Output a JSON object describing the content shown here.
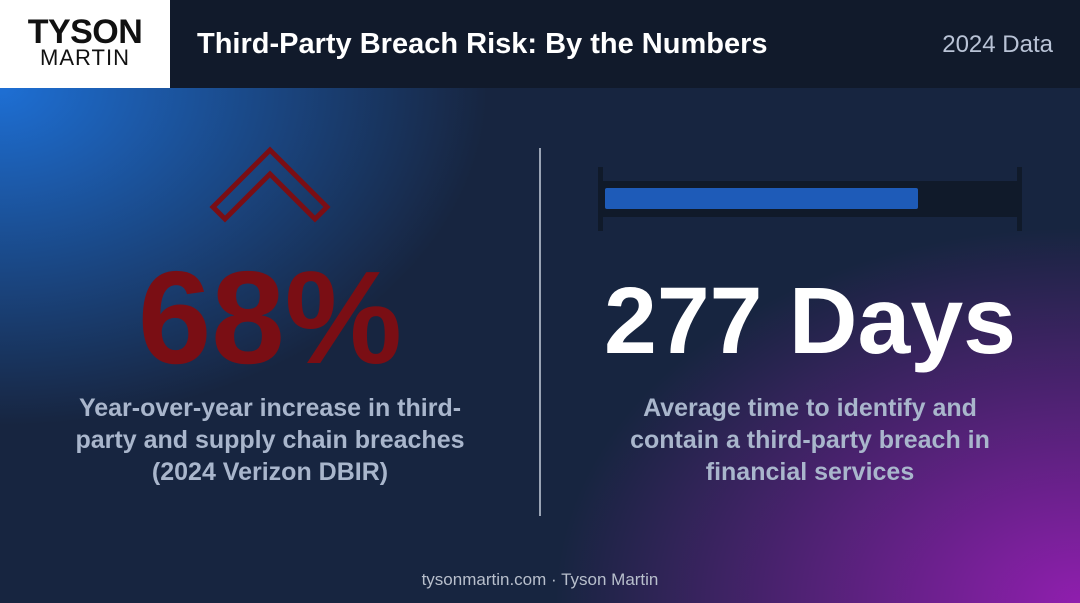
{
  "header": {
    "logo": {
      "line1": "TYSON",
      "line2": "MARTIN"
    },
    "title": "Third-Party Breach Risk: By the Numbers",
    "tag": "2024 Data"
  },
  "stats": [
    {
      "value": "68%",
      "description": [
        "Year-over-year increase in third-",
        "party and supply chain breaches",
        "(2024 Verizon DBIR)"
      ]
    },
    {
      "value": "277 Days",
      "description": [
        "Average time to identify and",
        "contain a third-party breach in",
        "financial services"
      ]
    }
  ],
  "footer": "tysonmartin.com · Tyson Martin"
}
